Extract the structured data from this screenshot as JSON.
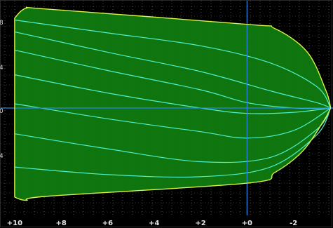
{
  "chart_data": {
    "type": "area",
    "title": "",
    "xlabel": "",
    "ylabel": "",
    "x_axis": {
      "reversed": true,
      "xlim": [
        10.6,
        -3.7
      ],
      "ticks": [
        10,
        8,
        6,
        4,
        2,
        0,
        -2
      ],
      "tick_labels": [
        "+10",
        "+8",
        "+6",
        "+4",
        "+2",
        "+0",
        "-2"
      ]
    },
    "y_axis": {
      "ylim": [
        -1.0,
        1.0
      ],
      "partially_visible_tick_labels": [
        "8",
        "4",
        "0",
        "4"
      ]
    },
    "crosshair": {
      "x": 0,
      "y": 0
    },
    "grid": "dotted",
    "colors": {
      "background": "#000000",
      "fill": "#107f10",
      "outline": "#d9f24a",
      "curves": "#4df0c8",
      "crosshair": "#2e86e8",
      "grid": "#8a8a8a",
      "tick_text": "#e8e8e8"
    },
    "envelope": {
      "upper": [
        {
          "x": 10.0,
          "y": 0.84
        },
        {
          "x": 9.5,
          "y": 0.93
        },
        {
          "x": 8.5,
          "y": 0.92
        },
        {
          "x": 0.0,
          "y": 0.78
        },
        {
          "x": -1.2,
          "y": 0.74
        },
        {
          "x": -2.6,
          "y": 0.52
        },
        {
          "x": -3.4,
          "y": 0.16
        },
        {
          "x": -3.6,
          "y": 0.0
        }
      ],
      "lower": [
        {
          "x": 10.0,
          "y": -0.83
        },
        {
          "x": 9.5,
          "y": -0.86
        },
        {
          "x": 8.5,
          "y": -0.82
        },
        {
          "x": 0.0,
          "y": -0.7
        },
        {
          "x": -1.2,
          "y": -0.6
        },
        {
          "x": -2.4,
          "y": -0.4
        },
        {
          "x": -3.3,
          "y": -0.12
        },
        {
          "x": -3.6,
          "y": 0.0
        }
      ]
    },
    "series": [
      {
        "values": [
          {
            "x": 10.0,
            "y": 0.82
          },
          {
            "x": 6.0,
            "y": 0.7
          },
          {
            "x": 2.0,
            "y": 0.58
          },
          {
            "x": -1.0,
            "y": 0.42
          },
          {
            "x": -3.0,
            "y": 0.2
          },
          {
            "x": -3.6,
            "y": 0.0
          }
        ]
      },
      {
        "values": [
          {
            "x": 10.0,
            "y": 0.71
          },
          {
            "x": 6.0,
            "y": 0.52
          },
          {
            "x": 2.0,
            "y": 0.34
          },
          {
            "x": -1.0,
            "y": 0.16
          },
          {
            "x": -3.0,
            "y": 0.05
          },
          {
            "x": -3.6,
            "y": 0.0
          }
        ]
      },
      {
        "values": [
          {
            "x": 10.0,
            "y": 0.54
          },
          {
            "x": 6.0,
            "y": 0.35
          },
          {
            "x": 2.0,
            "y": 0.17
          },
          {
            "x": 0.0,
            "y": 0.05
          },
          {
            "x": -2.0,
            "y": 0.0
          },
          {
            "x": -3.6,
            "y": 0.0
          }
        ]
      },
      {
        "values": [
          {
            "x": 10.0,
            "y": 0.31
          },
          {
            "x": 6.0,
            "y": 0.14
          },
          {
            "x": 2.0,
            "y": 0.0
          },
          {
            "x": 0.0,
            "y": -0.05
          },
          {
            "x": -2.0,
            "y": -0.04
          },
          {
            "x": -3.6,
            "y": 0.0
          }
        ]
      },
      {
        "values": [
          {
            "x": 10.0,
            "y": 0.04
          },
          {
            "x": 6.0,
            "y": -0.1
          },
          {
            "x": 2.0,
            "y": -0.22
          },
          {
            "x": 0.0,
            "y": -0.28
          },
          {
            "x": -2.0,
            "y": -0.21
          },
          {
            "x": -3.6,
            "y": 0.0
          }
        ]
      },
      {
        "values": [
          {
            "x": 10.0,
            "y": -0.24
          },
          {
            "x": 6.0,
            "y": -0.38
          },
          {
            "x": 2.0,
            "y": -0.5
          },
          {
            "x": -1.0,
            "y": -0.46
          },
          {
            "x": -3.0,
            "y": -0.2
          },
          {
            "x": -3.6,
            "y": 0.0
          }
        ]
      },
      {
        "values": [
          {
            "x": 10.0,
            "y": -0.55
          },
          {
            "x": 6.0,
            "y": -0.62
          },
          {
            "x": 2.0,
            "y": -0.64
          },
          {
            "x": -1.0,
            "y": -0.55
          },
          {
            "x": -3.0,
            "y": -0.25
          },
          {
            "x": -3.6,
            "y": 0.0
          }
        ]
      }
    ]
  }
}
